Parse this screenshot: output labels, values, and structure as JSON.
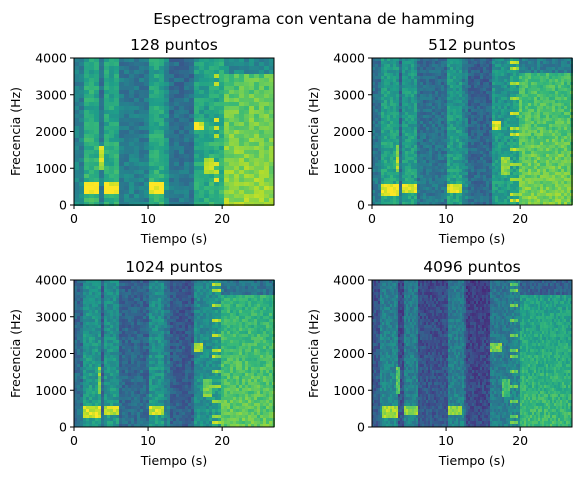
{
  "figure": {
    "suptitle": "Espectrograma con ventana de hamming"
  },
  "chart_data": [
    {
      "type": "heatmap",
      "title": "128 puntos",
      "xlabel": "Tiempo (s)",
      "ylabel": "Frecencia (Hz)",
      "xlim": [
        0,
        27
      ],
      "ylim": [
        0,
        4000
      ],
      "xticks": [
        "0",
        "10",
        "20"
      ],
      "xtick_values": [
        0,
        10,
        20
      ],
      "yticks": [
        "0",
        "1000",
        "2000",
        "3000",
        "4000"
      ],
      "ytick_values": [
        0,
        1000,
        2000,
        3000,
        4000
      ],
      "colormap": "viridis"
    },
    {
      "type": "heatmap",
      "title": "512 puntos",
      "xlabel": "Tiempo (s)",
      "ylabel": "Frecencia (Hz)",
      "xlim": [
        0,
        27
      ],
      "ylim": [
        0,
        4000
      ],
      "xticks": [
        "0",
        "10",
        "20"
      ],
      "xtick_values": [
        0,
        10,
        20
      ],
      "yticks": [
        "0",
        "1000",
        "2000",
        "3000",
        "4000"
      ],
      "ytick_values": [
        0,
        1000,
        2000,
        3000,
        4000
      ],
      "colormap": "viridis"
    },
    {
      "type": "heatmap",
      "title": "1024 puntos",
      "xlabel": "Tiempo (s)",
      "ylabel": "Frecencia (Hz)",
      "xlim": [
        0,
        27
      ],
      "ylim": [
        0,
        4000
      ],
      "xticks": [
        "0",
        "10",
        "20"
      ],
      "xtick_values": [
        0,
        10,
        20
      ],
      "yticks": [
        "0",
        "1000",
        "2000",
        "3000",
        "4000"
      ],
      "ytick_values": [
        0,
        1000,
        2000,
        3000,
        4000
      ],
      "colormap": "viridis"
    },
    {
      "type": "heatmap",
      "title": "4096 puntos",
      "xlabel": "Tiempo (s)",
      "ylabel": "Frecencia (Hz)",
      "xlim": [
        0,
        27
      ],
      "ylim": [
        0,
        4000
      ],
      "xticks": [
        "10",
        "20"
      ],
      "xtick_values": [
        10,
        20
      ],
      "yticks": [
        "0",
        "1000",
        "2000",
        "3000",
        "4000"
      ],
      "ytick_values": [
        0,
        1000,
        2000,
        3000,
        4000
      ],
      "colormap": "viridis"
    }
  ]
}
